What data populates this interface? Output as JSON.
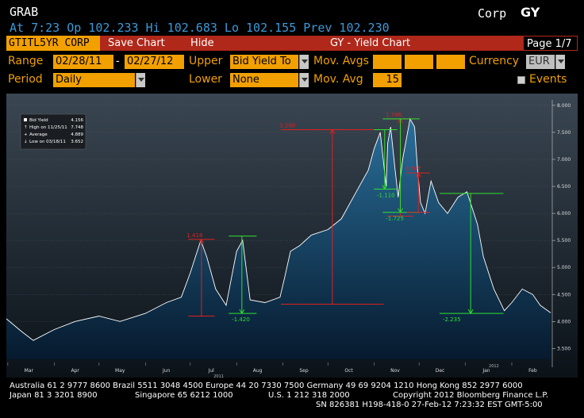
{
  "header": {
    "function": "GRAB",
    "market": "Corp",
    "command": "GY",
    "quote": "At  7:23 Op 102.233   Hi 102.683   Lo 102.155   Prev 102.230"
  },
  "toolbar": {
    "ticker": "GTITL5YR CORP",
    "save_chart": "Save Chart",
    "hide": "Hide",
    "title": "GY - Yield Chart",
    "page": "Page 1/7"
  },
  "controls": {
    "range_label": "Range",
    "range_start": "02/28/11",
    "range_sep": "-",
    "range_end": "02/27/12",
    "upper_label": "Upper",
    "upper_value": "Bid Yield To",
    "mov_avgs_label": "Mov. Avgs",
    "currency_label": "Currency",
    "currency_value": "EUR",
    "period_label": "Period",
    "period_value": "Daily",
    "lower_label": "Lower",
    "lower_value": "None",
    "mov_avg_label": "Mov. Avg",
    "mov_avg_value": "15",
    "events_label": "Events"
  },
  "legend": {
    "bid_yield": "Bid Yield",
    "bid_yield_val": "4.156",
    "high": "High on 11/25/11",
    "high_val": "7.748",
    "average": "Average",
    "average_val": "4.889",
    "low": "Low on 03/18/11",
    "low_val": "3.652"
  },
  "chart_data": {
    "type": "area",
    "title": "GY - Yield Chart",
    "series": [
      {
        "name": "Bid Yield",
        "x": [
          "2011-02-28",
          "2011-03-10",
          "2011-03-18",
          "2011-04-01",
          "2011-04-15",
          "2011-05-01",
          "2011-05-15",
          "2011-06-01",
          "2011-06-15",
          "2011-06-25",
          "2011-07-01",
          "2011-07-08",
          "2011-07-12",
          "2011-07-18",
          "2011-07-25",
          "2011-08-01",
          "2011-08-05",
          "2011-08-10",
          "2011-08-20",
          "2011-08-30",
          "2011-09-02",
          "2011-09-06",
          "2011-09-12",
          "2011-09-20",
          "2011-10-01",
          "2011-10-10",
          "2011-10-20",
          "2011-10-28",
          "2011-11-01",
          "2011-11-05",
          "2011-11-09",
          "2011-11-10",
          "2011-11-12",
          "2011-11-15",
          "2011-11-17",
          "2011-11-20",
          "2011-11-25",
          "2011-11-28",
          "2011-11-30",
          "2011-12-02",
          "2011-12-05",
          "2011-12-09",
          "2011-12-14",
          "2011-12-20",
          "2011-12-27",
          "2012-01-02",
          "2012-01-09",
          "2012-01-13",
          "2012-01-20",
          "2012-01-27",
          "2012-02-01",
          "2012-02-08",
          "2012-02-15",
          "2012-02-20",
          "2012-02-27"
        ],
        "y": [
          4.05,
          3.82,
          3.65,
          3.85,
          4.0,
          4.1,
          4.0,
          4.15,
          4.35,
          4.45,
          4.9,
          5.5,
          5.2,
          4.6,
          4.3,
          5.3,
          5.5,
          4.4,
          4.35,
          4.45,
          4.8,
          5.3,
          5.4,
          5.6,
          5.7,
          5.9,
          6.4,
          6.8,
          7.2,
          7.5,
          6.5,
          7.3,
          7.6,
          6.8,
          6.3,
          7.0,
          7.75,
          7.6,
          6.8,
          6.2,
          6.0,
          6.6,
          6.2,
          6.0,
          6.3,
          6.4,
          5.8,
          5.2,
          4.6,
          4.2,
          4.35,
          4.6,
          4.5,
          4.3,
          4.16
        ]
      }
    ],
    "ylim": [
      3.3,
      8.1
    ],
    "y_ticks": [
      "8.000",
      "7.500",
      "7.000",
      "6.500",
      "6.000",
      "5.500",
      "5.000",
      "4.500",
      "4.000",
      "3.500"
    ],
    "x_ticks": [
      "Mar",
      "Apr",
      "May",
      "Jun",
      "Jul",
      "Aug",
      "Sep",
      "Oct",
      "Nov",
      "Dec",
      "Jan",
      "Feb"
    ],
    "x_years": [
      "2011",
      "2012"
    ],
    "annotations": [
      {
        "type": "up",
        "label": "1.418",
        "x1": "2011-07-05",
        "x2": "2011-07-12",
        "from": 4.1,
        "to": 5.52
      },
      {
        "type": "down",
        "label": "-1.420",
        "x1": "2011-08-01",
        "x2": "2011-08-08",
        "from": 5.58,
        "to": 4.15
      },
      {
        "type": "up",
        "label": "3.200",
        "x1": "2011-09-05",
        "x2": "2011-11-02",
        "from": 4.32,
        "to": 7.55
      },
      {
        "type": "down",
        "label": "-1.110",
        "x1": "2011-11-06",
        "x2": "2011-11-10",
        "from": 7.55,
        "to": 6.45
      },
      {
        "type": "up",
        "label": "1.796",
        "x1": "2011-11-15",
        "x2": "2011-11-22",
        "from": 5.95,
        "to": 7.75
      },
      {
        "type": "down",
        "label": "-1.725",
        "x1": "2011-11-12",
        "x2": "2011-11-25",
        "from": 7.75,
        "to": 6.02
      },
      {
        "type": "up",
        "label": "0.707",
        "x1": "2011-11-28",
        "x2": "2011-12-03",
        "from": 6.02,
        "to": 6.75
      },
      {
        "type": "down",
        "label": "-2.235",
        "x1": "2011-12-20",
        "x2": "2012-01-20",
        "from": 6.37,
        "to": 4.15
      }
    ]
  },
  "footer": {
    "line1": "Australia 61 2 9777 8600 Brazil 5511 3048 4500 Europe 44 20 7330 7500 Germany 49 69 9204 1210 Hong Kong 852 2977 6000",
    "line2_left": "Japan 81 3 3201 8900",
    "line2_mid": "Singapore 65 6212 1000",
    "line2_us": "U.S. 1 212 318 2000",
    "line2_right": "Copyright 2012 Bloomberg Finance L.P.",
    "line3": "SN 826381 H198-418-0 27-Feb-12  7:23:32 EST  GMT-5:00"
  },
  "colors": {
    "accent": "#f2a000",
    "toolbar": "#b0281a",
    "up": "#e02020",
    "down": "#30e030",
    "quote": "#3a9ad9"
  }
}
